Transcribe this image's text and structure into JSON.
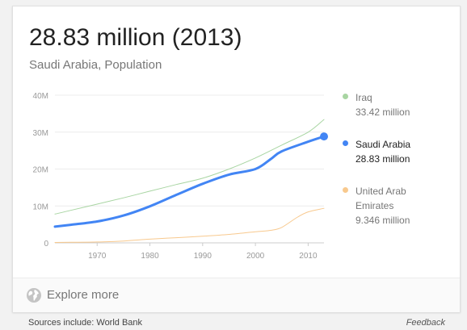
{
  "card": {
    "headline": "28.83 million (2013)",
    "subtitle": "Saudi Arabia, Population"
  },
  "chart_data": {
    "type": "line",
    "title": "",
    "xlabel": "",
    "ylabel": "",
    "xlim": [
      1962,
      2013
    ],
    "ylim": [
      0,
      40
    ],
    "x_ticks": [
      1970,
      1980,
      1990,
      2000,
      2010
    ],
    "x_tick_labels": [
      "1970",
      "1980",
      "1990",
      "2000",
      "2010"
    ],
    "y_ticks": [
      0,
      10,
      20,
      30,
      40
    ],
    "y_tick_labels": [
      "0",
      "10M",
      "20M",
      "30M",
      "40M"
    ],
    "grid": true,
    "legend_position": "right",
    "series": [
      {
        "name": "Iraq",
        "value_label": "33.42 million",
        "color": "#a8d5a2",
        "highlighted": false,
        "x": [
          1962,
          1965,
          1970,
          1975,
          1980,
          1985,
          1990,
          1995,
          2000,
          2005,
          2010,
          2013
        ],
        "y": [
          7.8,
          8.8,
          10.5,
          12.2,
          14.0,
          15.8,
          17.5,
          20.0,
          23.0,
          26.5,
          30.0,
          33.42
        ]
      },
      {
        "name": "Saudi Arabia",
        "value_label": "28.83 million",
        "color": "#4285f4",
        "highlighted": true,
        "x": [
          1962,
          1965,
          1970,
          1975,
          1980,
          1985,
          1990,
          1995,
          2000,
          2003,
          2005,
          2010,
          2013
        ],
        "y": [
          4.4,
          4.9,
          5.8,
          7.4,
          9.9,
          13.0,
          16.0,
          18.5,
          20.0,
          22.8,
          24.8,
          27.4,
          28.83
        ]
      },
      {
        "name": "United Arab Emirates",
        "value_label": "9.346 million",
        "color": "#f8c98e",
        "highlighted": false,
        "x": [
          1962,
          1965,
          1970,
          1975,
          1980,
          1985,
          1990,
          1995,
          2000,
          2003,
          2005,
          2008,
          2010,
          2013
        ],
        "y": [
          0.1,
          0.15,
          0.23,
          0.5,
          1.0,
          1.4,
          1.8,
          2.3,
          3.0,
          3.4,
          4.2,
          7.0,
          8.4,
          9.346
        ]
      }
    ]
  },
  "legend": {
    "items": [
      {
        "name": "Iraq",
        "value": "33.42 million"
      },
      {
        "name": "Saudi Arabia",
        "value": "28.83 million"
      },
      {
        "name": "United Arab Emirates",
        "value": "9.346 million"
      }
    ]
  },
  "explore": {
    "label": "Explore more",
    "icon": "globe-icon"
  },
  "footer": {
    "sources": "Sources include: World Bank",
    "feedback": "Feedback"
  }
}
